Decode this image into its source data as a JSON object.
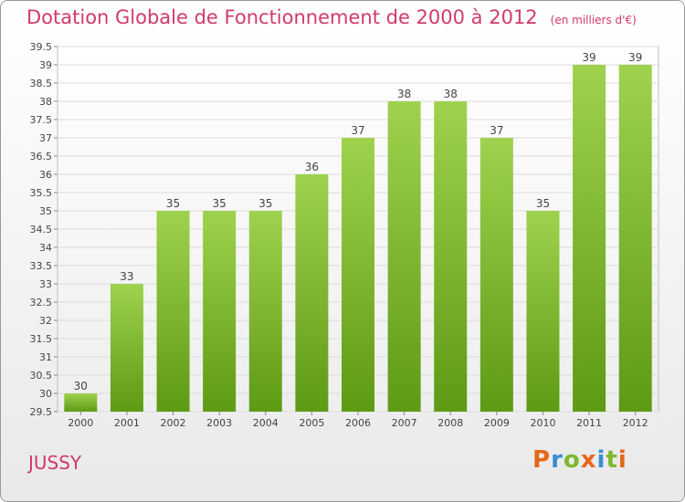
{
  "header": {
    "title": "Dotation Globale de Fonctionnement de 2000 à 2012",
    "unit": "(en milliers d'€)"
  },
  "footer": {
    "city": "JUSSY",
    "logo_text": "Proxiti",
    "logo_colors": [
      "#e7671a",
      "#3a8fd3",
      "#7cb82f",
      "#e7671a",
      "#3a8fd3",
      "#7cb82f",
      "#e7671a"
    ]
  },
  "chart_data": {
    "type": "bar",
    "categories": [
      "2000",
      "2001",
      "2002",
      "2003",
      "2004",
      "2005",
      "2006",
      "2007",
      "2008",
      "2009",
      "2010",
      "2011",
      "2012"
    ],
    "values": [
      30,
      33,
      35,
      35,
      35,
      36,
      37,
      38,
      38,
      37,
      35,
      39,
      39
    ],
    "value_labels": [
      "30",
      "33",
      "35",
      "35",
      "35",
      "36",
      "37",
      "38",
      "38",
      "37",
      "35",
      "39",
      "39"
    ],
    "ylim": [
      29.5,
      39.5
    ],
    "yticks": [
      29.5,
      30,
      30.5,
      31,
      31.5,
      32,
      32.5,
      33,
      33.5,
      34,
      34.5,
      35,
      35.5,
      36,
      36.5,
      37,
      37.5,
      38,
      38.5,
      39,
      39.5
    ],
    "ytick_labels": [
      "29.5",
      "30",
      "30.5",
      "31",
      "31.5",
      "32",
      "32.5",
      "33",
      "33.5",
      "34",
      "34.5",
      "35",
      "35.5",
      "36",
      "36.5",
      "37",
      "37.5",
      "38",
      "38.5",
      "39",
      "39.5"
    ],
    "grid": true,
    "bar_color_top": "#9fd24e",
    "bar_color_bottom": "#5e9a14"
  }
}
